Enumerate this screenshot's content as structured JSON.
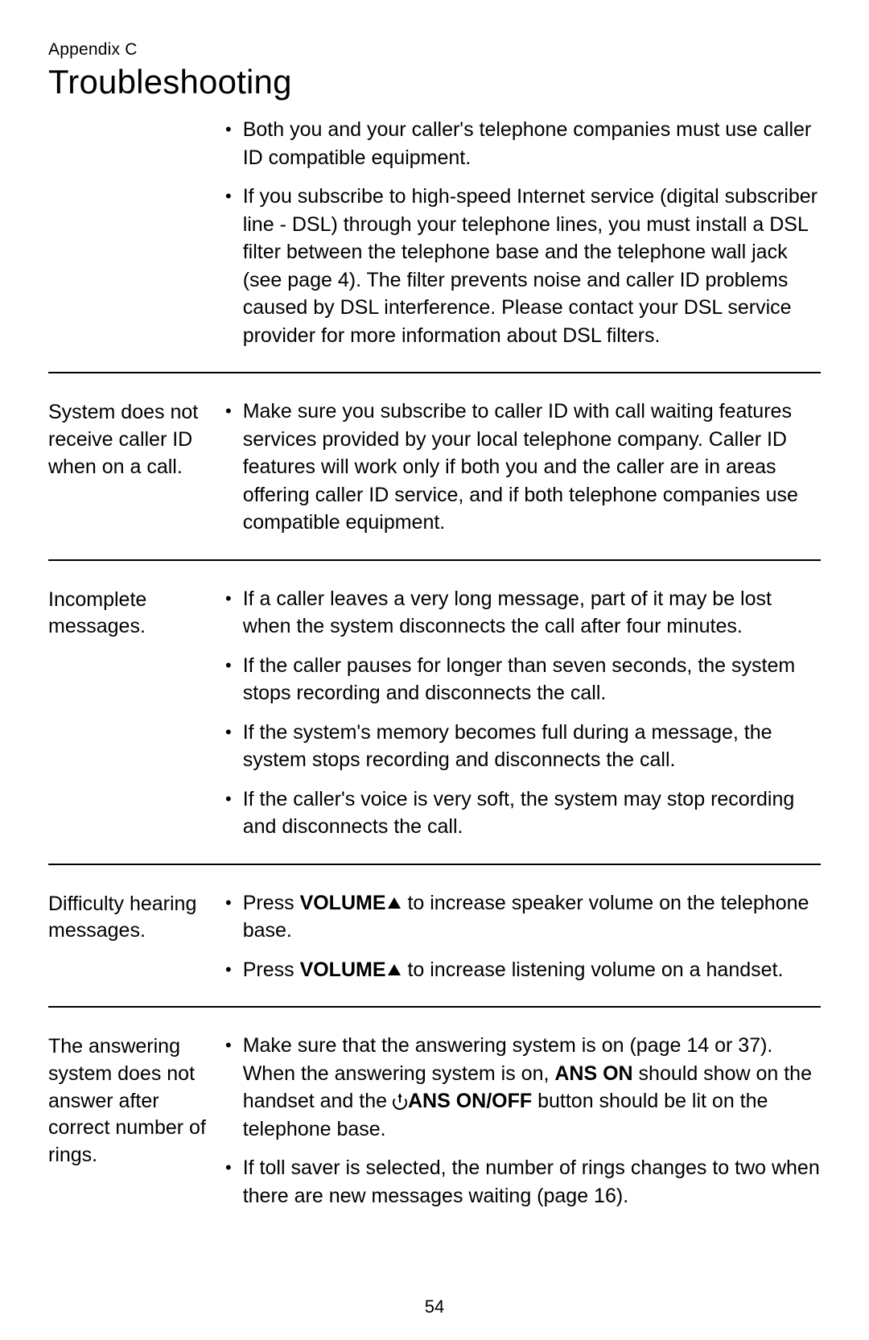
{
  "header": {
    "appendix": "Appendix C",
    "title": "Troubleshooting"
  },
  "page_number": "54",
  "sections": [
    {
      "label": "",
      "items": [
        {
          "text": "Both you and your caller's telephone companies must use caller ID compatible equipment."
        },
        {
          "text": "If you subscribe to high-speed Internet service (digital subscriber line - DSL) through your telephone lines, you must install a DSL filter between the telephone base and the telephone wall jack (see page 4). The filter prevents noise and caller ID problems caused by DSL interference. Please contact your DSL service provider for more information about DSL filters."
        }
      ]
    },
    {
      "label": "System does not receive caller ID when on a call.",
      "items": [
        {
          "text": "Make sure you subscribe to caller ID with call waiting features services provided by your local telephone company. Caller ID features will work only if both you and the caller are in areas offering caller ID service, and if both telephone companies use compatible equipment."
        }
      ]
    },
    {
      "label": "Incomplete messages.",
      "items": [
        {
          "text": "If a caller leaves a very long message, part of it may be lost when the system disconnects the call after four minutes."
        },
        {
          "text": "If the caller pauses for longer than seven seconds, the system stops recording and disconnects the call."
        },
        {
          "text": "If the system's memory becomes full during a message, the system stops recording and disconnects the call."
        },
        {
          "text": "If the caller's voice is very soft, the system may stop recording and disconnects the call."
        }
      ]
    },
    {
      "label": "Difficulty hearing messages.",
      "items": [
        {
          "segments": [
            {
              "t": "Press "
            },
            {
              "t": "VOLUME",
              "bold": true
            },
            {
              "icon": "triangle-up"
            },
            {
              "t": " to increase speaker volume on the telephone base."
            }
          ]
        },
        {
          "segments": [
            {
              "t": "Press "
            },
            {
              "t": "VOLUME",
              "bold": true
            },
            {
              "icon": "triangle-up"
            },
            {
              "t": " to increase listening volume on a handset."
            }
          ]
        }
      ]
    },
    {
      "label": "The answering system does not answer after correct number of rings.",
      "items": [
        {
          "segments": [
            {
              "t": "Make sure that the answering system is on (page 14 or 37). When the answering system is on, "
            },
            {
              "t": "ANS ON",
              "bold": true
            },
            {
              "t": " should show on the handset and the "
            },
            {
              "icon": "power"
            },
            {
              "t": "ANS ON/OFF",
              "bold": true
            },
            {
              "t": " button should be lit on the telephone base."
            }
          ]
        },
        {
          "text": "If toll saver is selected, the number of rings changes to two when there are new messages waiting (page 16)."
        }
      ]
    }
  ]
}
